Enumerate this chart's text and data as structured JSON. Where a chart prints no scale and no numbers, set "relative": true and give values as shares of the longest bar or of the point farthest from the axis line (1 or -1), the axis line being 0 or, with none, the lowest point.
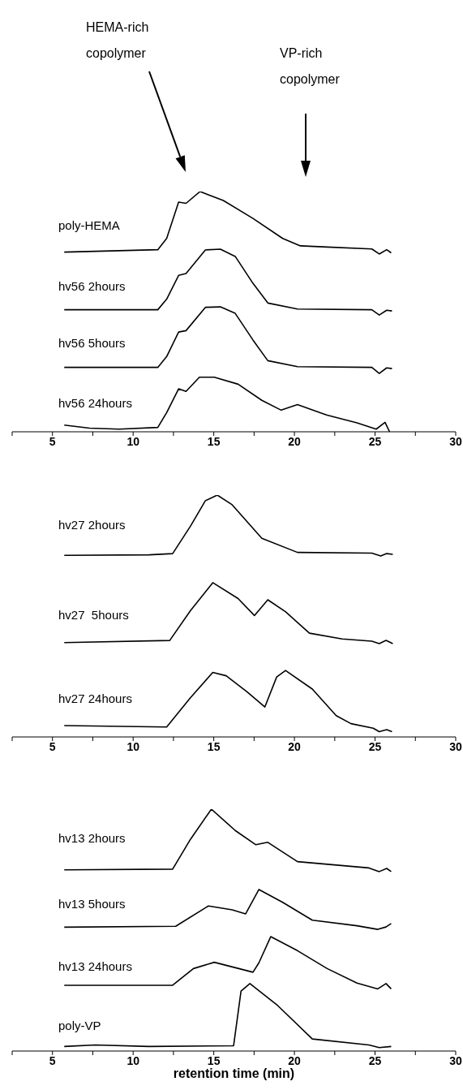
{
  "chart_data": [
    {
      "type": "line",
      "relative": true,
      "xlim": [
        2.5,
        30
      ],
      "tick_labels": "x",
      "xticks": [
        {
          "value": 2.5,
          "label": null
        },
        5,
        {
          "value": 7.5,
          "label": null
        },
        10,
        {
          "value": 12.5,
          "label": null
        },
        15,
        {
          "value": 17.5,
          "label": null
        },
        20,
        {
          "value": 22.5,
          "label": null
        },
        25,
        {
          "value": 27.5,
          "label": null
        },
        30
      ],
      "annotations": [
        "HEMA-rich copolymer",
        "VP-rich copolymer"
      ],
      "series": [
        {
          "name": "poly-HEMA",
          "color": "#000000",
          "x": [
            5.73,
            11.53,
            12.08,
            12.82,
            13.28,
            14.15,
            15.59,
            17.43,
            19.27,
            20.37,
            22.03,
            24.8,
            25.26,
            25.72,
            26.0
          ],
          "values": [
            0.748,
            0.758,
            0.805,
            0.956,
            0.951,
            1,
            0.963,
            0.888,
            0.805,
            0.774,
            0.769,
            0.761,
            0.74,
            0.758,
            0.745
          ]
        },
        {
          "name": "hv56 2hours",
          "color": "#000000",
          "x": [
            5.73,
            11.53,
            12.08,
            12.82,
            13.28,
            14.48,
            15.41,
            16.33,
            17.43,
            18.35,
            20.19,
            24.8,
            25.26,
            25.72,
            26.05
          ],
          "values": [
            0.508,
            0.508,
            0.552,
            0.651,
            0.659,
            0.757,
            0.76,
            0.73,
            0.618,
            0.536,
            0.511,
            0.508,
            0.486,
            0.506,
            0.503
          ]
        },
        {
          "name": "hv56 5hours",
          "color": "#000000",
          "x": [
            5.73,
            11.53,
            12.08,
            12.82,
            13.28,
            14.48,
            15.41,
            16.33,
            17.43,
            18.35,
            20.19,
            24.8,
            25.26,
            25.72,
            26.05
          ],
          "values": [
            0.268,
            0.268,
            0.313,
            0.415,
            0.421,
            0.518,
            0.52,
            0.493,
            0.382,
            0.296,
            0.271,
            0.268,
            0.243,
            0.266,
            0.263
          ]
        },
        {
          "name": "hv56 24hours",
          "color": "#000000",
          "x": [
            5.73,
            7.29,
            9.13,
            11.53,
            12.08,
            12.82,
            13.28,
            14.11,
            15.03,
            16.51,
            17.98,
            19.18,
            20.19,
            22.03,
            23.88,
            25.07,
            25.62,
            25.9
          ],
          "values": [
            0.028,
            0.015,
            0.011,
            0.018,
            0.08,
            0.179,
            0.168,
            0.227,
            0.227,
            0.198,
            0.131,
            0.09,
            0.113,
            0.069,
            0.037,
            0.011,
            0.039,
            0
          ]
        }
      ]
    },
    {
      "type": "line",
      "relative": true,
      "xlim": [
        2.5,
        30
      ],
      "tick_labels": "x",
      "xticks": [
        {
          "value": 2.5,
          "label": null
        },
        5,
        {
          "value": 7.5,
          "label": null
        },
        10,
        {
          "value": 12.5,
          "label": null
        },
        15,
        {
          "value": 17.5,
          "label": null
        },
        20,
        {
          "value": 22.5,
          "label": null
        },
        25,
        {
          "value": 27.5,
          "label": null
        },
        30
      ],
      "series": [
        {
          "name": "hv27 2hours",
          "color": "#000000",
          "x": [
            5.73,
            10.98,
            12.45,
            13.56,
            14.48,
            15.22,
            16.14,
            17.98,
            20.19,
            24.8,
            25.35,
            25.72,
            26.1
          ],
          "values": [
            0.751,
            0.753,
            0.758,
            0.872,
            0.977,
            1,
            0.96,
            0.821,
            0.763,
            0.76,
            0.748,
            0.758,
            0.755
          ]
        },
        {
          "name": "hv27  5hours",
          "color": "#000000",
          "x": [
            5.73,
            12.27,
            13.55,
            14.94,
            16.51,
            17.52,
            18.35,
            19.46,
            20.93,
            22.96,
            24.8,
            25.26,
            25.68,
            26.1
          ],
          "values": [
            0.39,
            0.399,
            0.522,
            0.638,
            0.572,
            0.502,
            0.567,
            0.517,
            0.429,
            0.405,
            0.396,
            0.386,
            0.399,
            0.386
          ]
        },
        {
          "name": "hv27 24hours",
          "color": "#000000",
          "x": [
            5.73,
            12.08,
            13.55,
            14.94,
            15.77,
            17.06,
            18.17,
            18.9,
            19.45,
            21.11,
            22.59,
            23.51,
            24.89,
            25.26,
            25.72,
            26.05
          ],
          "values": [
            0.047,
            0.041,
            0.162,
            0.267,
            0.253,
            0.187,
            0.124,
            0.248,
            0.275,
            0.198,
            0.088,
            0.055,
            0.036,
            0.022,
            0.03,
            0.022
          ]
        }
      ]
    },
    {
      "type": "line",
      "relative": true,
      "xlim": [
        2.5,
        30
      ],
      "tick_labels": "x",
      "xlabel": "retention time (min)",
      "xticks": [
        {
          "value": 2.5,
          "label": null
        },
        5,
        {
          "value": 7.5,
          "label": null
        },
        10,
        {
          "value": 12.5,
          "label": null
        },
        15,
        {
          "value": 17.5,
          "label": null
        },
        20,
        {
          "value": 22.5,
          "label": null
        },
        25,
        {
          "value": 27.5,
          "label": null
        },
        30
      ],
      "series": [
        {
          "name": "hv13 2hours",
          "color": "#000000",
          "x": [
            5.73,
            12.45,
            13.56,
            14.85,
            16.33,
            17.61,
            18.35,
            20.19,
            24.62,
            25.26,
            25.72,
            26.0
          ],
          "values": [
            0.749,
            0.752,
            0.876,
            1,
            0.912,
            0.853,
            0.863,
            0.783,
            0.757,
            0.742,
            0.755,
            0.742
          ]
        },
        {
          "name": "hv13 5hours",
          "color": "#000000",
          "x": [
            5.73,
            12.64,
            14.67,
            16.14,
            16.97,
            17.8,
            19.27,
            21.11,
            23.88,
            25.17,
            25.68,
            26.0
          ],
          "values": [
            0.512,
            0.516,
            0.6,
            0.584,
            0.567,
            0.668,
            0.615,
            0.541,
            0.518,
            0.503,
            0.513,
            0.527
          ]
        },
        {
          "name": "hv13 24hours",
          "color": "#000000",
          "x": [
            5.73,
            12.45,
            13.74,
            15.03,
            17.43,
            17.8,
            18.53,
            20.19,
            22.03,
            23.88,
            25.17,
            25.68,
            26.0
          ],
          "values": [
            0.272,
            0.272,
            0.341,
            0.367,
            0.326,
            0.365,
            0.473,
            0.415,
            0.341,
            0.281,
            0.257,
            0.279,
            0.257
          ]
        },
        {
          "name": "poly-VP",
          "color": "#000000",
          "x": [
            5.73,
            7.66,
            10.98,
            16.23,
            16.69,
            17.24,
            18.9,
            21.11,
            24.62,
            25.26,
            26.0
          ],
          "values": [
            0.019,
            0.025,
            0.019,
            0.022,
            0.248,
            0.279,
            0.192,
            0.05,
            0.025,
            0.014,
            0.019
          ]
        }
      ]
    }
  ]
}
